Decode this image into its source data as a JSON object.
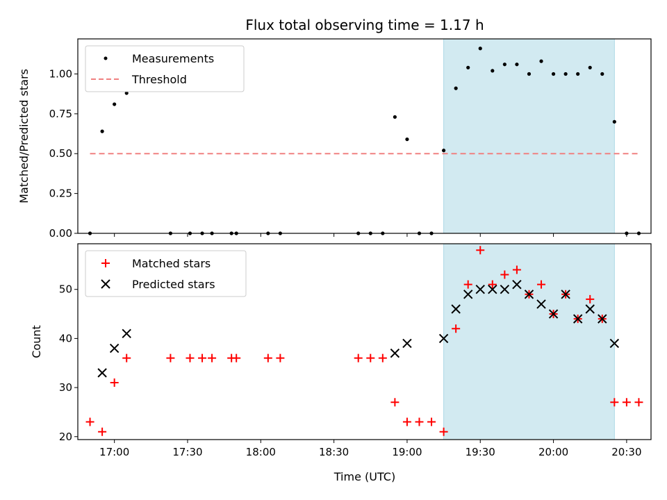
{
  "chart_data": {
    "title": "Flux total observing time = 1.17 h",
    "x_axis": {
      "label": "Time (UTC)",
      "range": [
        "16:45",
        "20:40"
      ],
      "ticks": [
        "17:00",
        "17:30",
        "18:00",
        "18:30",
        "19:00",
        "19:30",
        "20:00",
        "20:30"
      ]
    },
    "shaded_interval": {
      "start": "19:15",
      "end": "20:25",
      "color": "#add8e6"
    },
    "panels": [
      {
        "type": "scatter",
        "ylabel": "Matched/Predicted stars",
        "ylim": [
          0,
          1.22
        ],
        "yticks": [
          "0.00",
          "0.25",
          "0.50",
          "0.75",
          "1.00"
        ],
        "legend_position": "top-left",
        "series": [
          {
            "name": "Measurements",
            "marker": "dot",
            "color": "#000000",
            "x": [
              "16:50",
              "16:55",
              "17:00",
              "17:05",
              "17:23",
              "17:31",
              "17:36",
              "17:40",
              "17:48",
              "17:50",
              "18:03",
              "18:08",
              "18:40",
              "18:45",
              "18:50",
              "18:55",
              "19:00",
              "19:05",
              "19:10",
              "19:15",
              "19:20",
              "19:25",
              "19:30",
              "19:35",
              "19:40",
              "19:45",
              "19:50",
              "19:55",
              "20:00",
              "20:05",
              "20:10",
              "20:15",
              "20:20",
              "20:25",
              "20:30",
              "20:35"
            ],
            "y": [
              0,
              0.64,
              0.81,
              0.88,
              0,
              0,
              0,
              0,
              0,
              0,
              0,
              0,
              0,
              0,
              0,
              0.73,
              0.59,
              0,
              0,
              0.52,
              0.91,
              1.04,
              1.16,
              1.02,
              1.06,
              1.06,
              1.0,
              1.08,
              1.0,
              1.0,
              1.0,
              1.04,
              1.0,
              0.7,
              0,
              0
            ]
          },
          {
            "name": "Threshold",
            "marker": "dashed-line",
            "color": "#f08080",
            "x": [
              "16:50",
              "20:35"
            ],
            "y": [
              0.5,
              0.5
            ]
          }
        ]
      },
      {
        "type": "scatter",
        "ylabel": "Count",
        "ylim": [
          19.4,
          59.3
        ],
        "yticks": [
          "20",
          "30",
          "40",
          "50"
        ],
        "legend_position": "top-left",
        "series": [
          {
            "name": "Matched stars",
            "marker": "plus",
            "color": "#ff0000",
            "x": [
              "16:50",
              "16:55",
              "17:00",
              "17:05",
              "17:23",
              "17:31",
              "17:36",
              "17:40",
              "17:48",
              "17:50",
              "18:03",
              "18:08",
              "18:40",
              "18:45",
              "18:50",
              "18:55",
              "19:00",
              "19:05",
              "19:10",
              "19:15",
              "19:20",
              "19:25",
              "19:30",
              "19:35",
              "19:40",
              "19:45",
              "19:50",
              "19:55",
              "20:00",
              "20:05",
              "20:10",
              "20:15",
              "20:20",
              "20:25",
              "20:30",
              "20:35"
            ],
            "y": [
              23,
              21,
              31,
              36,
              36,
              36,
              36,
              36,
              36,
              36,
              36,
              36,
              36,
              36,
              36,
              27,
              23,
              23,
              23,
              21,
              42,
              51,
              58,
              51,
              53,
              54,
              49,
              51,
              45,
              49,
              44,
              48,
              44,
              27,
              27,
              27
            ]
          },
          {
            "name": "Predicted stars",
            "marker": "x",
            "color": "#000000",
            "x": [
              "16:55",
              "17:00",
              "17:05",
              "18:55",
              "19:00",
              "19:15",
              "19:20",
              "19:25",
              "19:30",
              "19:35",
              "19:40",
              "19:45",
              "19:50",
              "19:55",
              "20:00",
              "20:05",
              "20:10",
              "20:15",
              "20:20",
              "20:25"
            ],
            "y": [
              33,
              38,
              41,
              37,
              39,
              40,
              46,
              49,
              50,
              50,
              50,
              51,
              49,
              47,
              45,
              49,
              44,
              46,
              44,
              39
            ]
          }
        ]
      }
    ]
  }
}
